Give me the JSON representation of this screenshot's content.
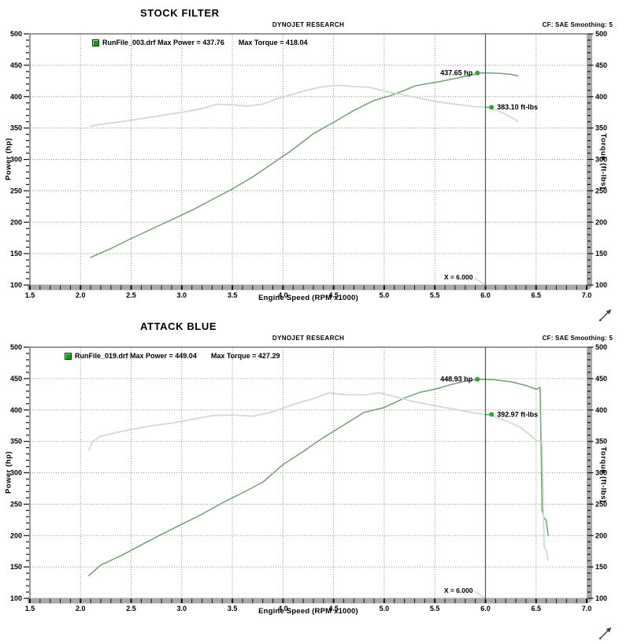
{
  "page": {
    "background": "#ffffff"
  },
  "colors": {
    "power_curve": "#74a074",
    "torque_curve": "#ccdfcc",
    "marker_dot": "#2fa52f",
    "legend_swatch": "#0c9c0c",
    "cursor_line": "#555555",
    "grid": "#909090",
    "axis_bar": "#a9a9a9",
    "frame": "#333333",
    "text": "#000000"
  },
  "decorations": {
    "resize_arrow_icon": "diagonal-ne-resize-arrow"
  },
  "chart_data": [
    {
      "type": "line",
      "title": "STOCK FILTER",
      "header_center": "DYNOJET RESEARCH",
      "header_right": "CF: SAE  Smoothing: 5",
      "xlabel": "Engine Speed (RPM x1000)",
      "ylabel_left": "Power (hp)",
      "ylabel_right": "Torque (ft-lbs)",
      "xlim": [
        1.5,
        7.0
      ],
      "ylim": [
        100,
        500
      ],
      "x_ticks": [
        1.5,
        2.0,
        2.5,
        3.0,
        3.5,
        4.0,
        4.5,
        5.0,
        5.5,
        6.0,
        6.5,
        7.0
      ],
      "y_ticks": [
        100,
        150,
        200,
        250,
        300,
        350,
        400,
        450,
        500
      ],
      "x_minor_step": 0.1,
      "y_minor_step": 10,
      "grid": "dotted",
      "legend": {
        "run_file": "RunFile_003.drf",
        "max_power": 437.76,
        "max_torque": 418.04,
        "power_text": "RunFile_003.drf Max Power = 437.76",
        "torque_text": "Max Torque = 418.04"
      },
      "cursor": {
        "x": 6.0,
        "label": "X = 6.000"
      },
      "markers": {
        "power": {
          "x": 5.92,
          "value": 437.65,
          "label": "437.65 hp"
        },
        "torque": {
          "x": 6.06,
          "value": 383.1,
          "label": "383.10 ft-lbs"
        }
      },
      "series": [
        {
          "name": "power-hp",
          "color": "#74a074",
          "width": 1.5,
          "x": [
            2.1,
            2.3,
            2.5,
            2.7,
            2.9,
            3.1,
            3.3,
            3.5,
            3.7,
            3.9,
            4.1,
            4.3,
            4.5,
            4.7,
            4.9,
            5.05,
            5.2,
            5.3,
            5.4,
            5.55,
            5.7,
            5.85,
            5.95,
            6.05,
            6.15,
            6.25,
            6.32
          ],
          "y": [
            144,
            158,
            174,
            189,
            204,
            219,
            236,
            253,
            272,
            294,
            316,
            341,
            359,
            378,
            394,
            401,
            410,
            417,
            420,
            424,
            429,
            434,
            437.8,
            437.5,
            437,
            435.5,
            433
          ]
        },
        {
          "name": "torque-ftlbs",
          "color": "#ccdfcc",
          "width": 1.8,
          "x": [
            2.1,
            2.25,
            2.4,
            2.6,
            2.8,
            3.0,
            3.2,
            3.35,
            3.5,
            3.65,
            3.8,
            3.95,
            4.1,
            4.25,
            4.4,
            4.55,
            4.7,
            4.85,
            5.0,
            5.15,
            5.3,
            5.45,
            5.6,
            5.75,
            5.9,
            6.0,
            6.1,
            6.2,
            6.32
          ],
          "y": [
            353,
            357,
            360,
            365,
            370,
            375,
            381,
            388,
            387,
            385,
            388,
            397,
            404,
            411,
            416,
            418,
            416,
            415,
            409,
            404,
            399,
            394,
            390,
            387,
            384,
            383.1,
            379,
            372,
            361
          ]
        }
      ]
    },
    {
      "type": "line",
      "title": "ATTACK BLUE",
      "header_center": "DYNOJET RESEARCH",
      "header_right": "CF: SAE  Smoothing: 5",
      "xlabel": "Engine Speed (RPM x1000)",
      "ylabel_left": "Power (hp)",
      "ylabel_right": "Torque (ft-lbs)",
      "xlim": [
        1.5,
        7.0
      ],
      "ylim": [
        100,
        500
      ],
      "x_ticks": [
        1.5,
        2.0,
        2.5,
        3.0,
        3.5,
        4.0,
        4.5,
        5.0,
        5.5,
        6.0,
        6.5,
        7.0
      ],
      "y_ticks": [
        100,
        150,
        200,
        250,
        300,
        350,
        400,
        450,
        500
      ],
      "x_minor_step": 0.1,
      "y_minor_step": 10,
      "grid": "dotted",
      "legend": {
        "run_file": "RunFile_019.drf",
        "max_power": 449.04,
        "max_torque": 427.29,
        "power_text": "RunFile_019.drf Max Power = 449.04",
        "torque_text": "Max Torque = 427.29"
      },
      "cursor": {
        "x": 6.0,
        "label": "X = 6.000"
      },
      "markers": {
        "power": {
          "x": 5.92,
          "value": 448.93,
          "label": "448.93 hp"
        },
        "torque": {
          "x": 6.06,
          "value": 392.97,
          "label": "392.97 ft-lbs"
        }
      },
      "series": [
        {
          "name": "power-hp",
          "color": "#74a074",
          "width": 1.5,
          "x": [
            2.08,
            2.2,
            2.4,
            2.6,
            2.8,
            3.0,
            3.2,
            3.4,
            3.6,
            3.8,
            4.0,
            4.2,
            4.4,
            4.6,
            4.8,
            5.0,
            5.2,
            5.35,
            5.5,
            5.65,
            5.8,
            5.95,
            6.1,
            6.25,
            6.4,
            6.5,
            6.54,
            6.56,
            6.58,
            6.6,
            6.62
          ],
          "y": [
            136,
            153,
            168,
            185,
            202,
            218,
            234,
            252,
            268,
            285,
            313,
            334,
            356,
            376,
            396,
            404,
            419,
            428,
            433,
            440,
            446,
            449,
            448,
            445,
            439,
            433,
            436,
            240,
            228,
            224,
            200
          ]
        },
        {
          "name": "torque-ftlbs",
          "color": "#ccdfcc",
          "width": 1.8,
          "x": [
            2.08,
            2.12,
            2.2,
            2.35,
            2.5,
            2.7,
            2.9,
            3.1,
            3.3,
            3.5,
            3.7,
            3.9,
            4.1,
            4.3,
            4.45,
            4.6,
            4.8,
            4.95,
            5.1,
            5.3,
            5.5,
            5.7,
            5.9,
            6.05,
            6.2,
            6.35,
            6.5,
            6.56,
            6.58,
            6.6,
            6.62
          ],
          "y": [
            336,
            350,
            358,
            364,
            369,
            375,
            379,
            385,
            391,
            392,
            390,
            397,
            409,
            418,
            427,
            424.5,
            424,
            427.3,
            421.5,
            413,
            407,
            401,
            395,
            391,
            383,
            372,
            352,
            348,
            182,
            176,
            161
          ]
        }
      ]
    }
  ]
}
